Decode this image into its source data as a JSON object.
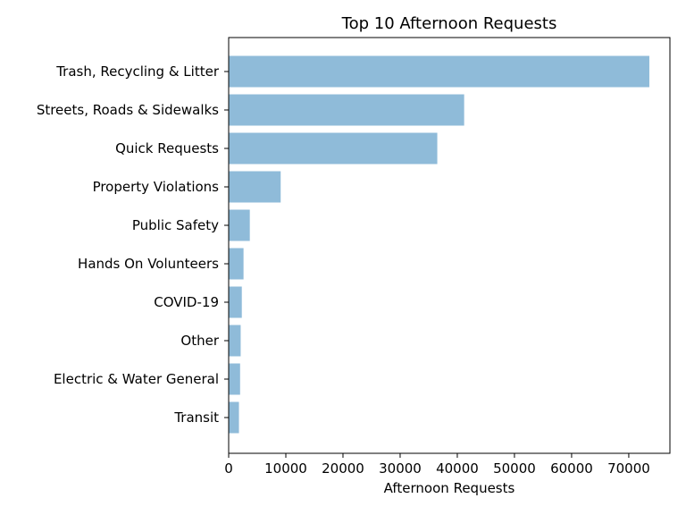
{
  "chart_data": {
    "type": "bar",
    "orientation": "horizontal",
    "title": "Top 10 Afternoon Requests",
    "xlabel": "Afternoon Requests",
    "ylabel": "",
    "categories": [
      "Trash, Recycling & Litter",
      "Streets, Roads & Sidewalks",
      "Quick Requests",
      "Property Violations",
      "Public Safety",
      "Hands On Volunteers",
      "COVID-19",
      "Other",
      "Electric & Water General",
      "Transit"
    ],
    "values": [
      73600,
      41200,
      36500,
      9100,
      3700,
      2600,
      2300,
      2100,
      2000,
      1800
    ],
    "xlim": [
      0,
      77200
    ],
    "xticks": [
      0,
      10000,
      20000,
      30000,
      40000,
      50000,
      60000,
      70000
    ],
    "xtick_labels": [
      "0",
      "10000",
      "20000",
      "30000",
      "40000",
      "50000",
      "60000",
      "70000"
    ],
    "grid": false,
    "bar_color": "#8fbbd9"
  }
}
